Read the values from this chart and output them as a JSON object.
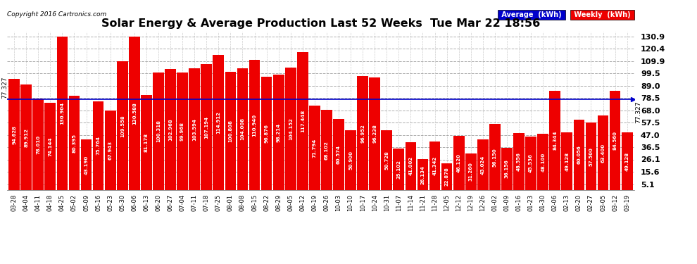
{
  "title": "Solar Energy & Average Production Last 52 Weeks  Tue Mar 22 18:56",
  "copyright": "Copyright 2016 Cartronics.com",
  "average_value": 77.327,
  "bar_color": "#ee0000",
  "average_color": "#0000cc",
  "background_color": "#ffffff",
  "plot_bg_color": "#ffffff",
  "grid_color": "#999999",
  "legend_avg_color": "#0000cc",
  "legend_weekly_color": "#ee0000",
  "categories": [
    "03-28",
    "04-04",
    "04-11",
    "04-18",
    "04-25",
    "05-02",
    "05-09",
    "05-16",
    "05-23",
    "05-30",
    "06-06",
    "06-13",
    "06-20",
    "06-27",
    "07-04",
    "07-11",
    "07-18",
    "07-25",
    "08-01",
    "08-08",
    "08-15",
    "08-22",
    "08-29",
    "09-05",
    "09-12",
    "09-19",
    "09-26",
    "10-03",
    "10-10",
    "10-17",
    "10-24",
    "10-31",
    "11-07",
    "11-14",
    "11-21",
    "11-28",
    "12-05",
    "12-12",
    "12-19",
    "12-26",
    "01-02",
    "01-09",
    "01-16",
    "01-23",
    "01-30",
    "02-06",
    "02-13",
    "02-20",
    "02-27",
    "03-05",
    "03-12",
    "03-19"
  ],
  "values": [
    94.628,
    89.912,
    78.01,
    74.144,
    130.904,
    80.395,
    43.19,
    75.764,
    67.943,
    109.558,
    130.588,
    81.178,
    100.318,
    102.968,
    99.968,
    103.594,
    107.194,
    114.912,
    100.808,
    104.008,
    110.94,
    96.876,
    98.214,
    104.152,
    117.448,
    71.794,
    68.102,
    60.574,
    50.9,
    96.952,
    96.238,
    50.728,
    35.102,
    41.002,
    26.134,
    41.342,
    22.878,
    46.12,
    31.26,
    43.024,
    56.15,
    36.156,
    48.556,
    45.536,
    48.1,
    84.344,
    49.128,
    60.056,
    57.5,
    63.4,
    84.56,
    49.128
  ],
  "yticks": [
    5.1,
    15.6,
    26.1,
    36.5,
    47.0,
    57.5,
    68.0,
    78.5,
    89.0,
    99.5,
    109.9,
    120.4,
    130.9
  ],
  "ylim": [
    0,
    135
  ],
  "bar_label_fontsize": 5.0,
  "xlabel_fontsize": 6.0
}
